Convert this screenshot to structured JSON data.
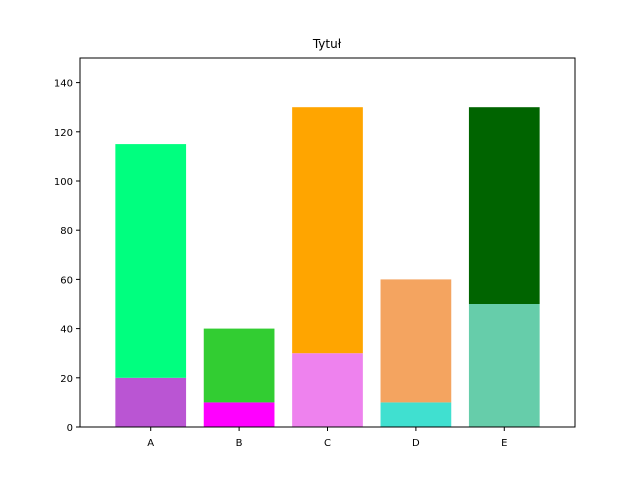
{
  "chart_data": {
    "type": "bar",
    "stacked": true,
    "title": "Tytuł",
    "xlabel": "",
    "ylabel": "",
    "categories": [
      "A",
      "B",
      "C",
      "D",
      "E"
    ],
    "bottom_values": [
      20,
      10,
      30,
      10,
      50
    ],
    "top_values": [
      95,
      30,
      100,
      50,
      80
    ],
    "bottom_colors": [
      "#ba55d3",
      "#ff00ff",
      "#ee82ee",
      "#40e0d0",
      "#66cdaa"
    ],
    "top_colors": [
      "#00ff7f",
      "#32cd32",
      "#ffa500",
      "#f4a460",
      "#006400"
    ],
    "ylim": [
      0,
      150
    ],
    "yticks": [
      0,
      20,
      40,
      60,
      80,
      100,
      120,
      140
    ],
    "grid": false,
    "legend": "none"
  }
}
